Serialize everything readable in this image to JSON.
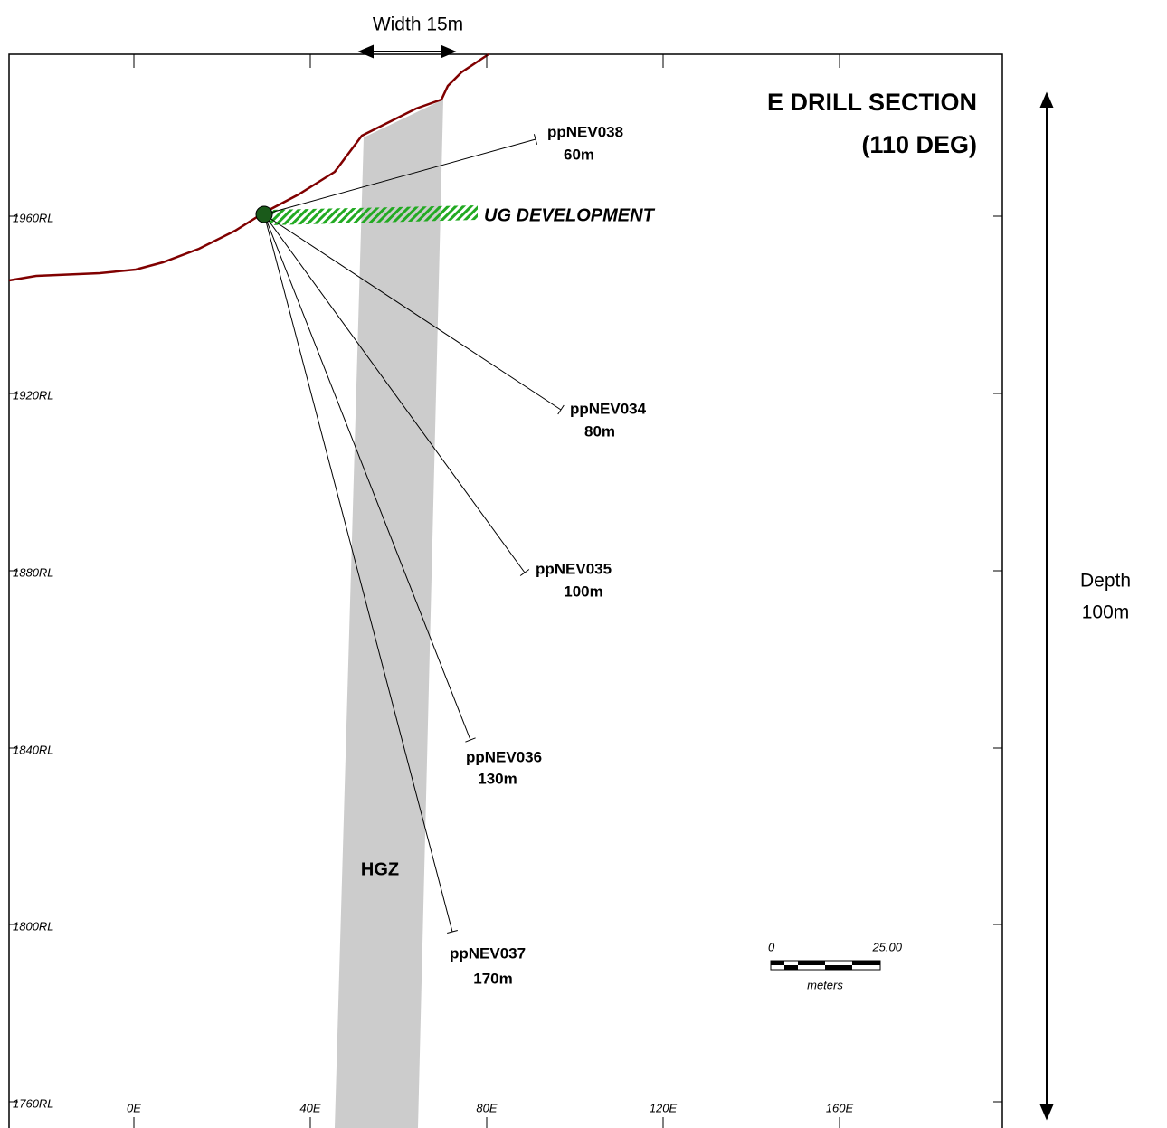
{
  "header": {
    "title": [
      "E DRILL SECTION",
      "(110 DEG)"
    ]
  },
  "annotations": {
    "width": "Width 15m",
    "depth": [
      "Depth",
      "100m"
    ],
    "development": "UG DEVELOPMENT",
    "zone": "HGZ"
  },
  "holes": [
    {
      "name": "ppNEV038",
      "length": "60m"
    },
    {
      "name": "ppNEV034",
      "length": "80m"
    },
    {
      "name": "ppNEV035",
      "length": "100m"
    },
    {
      "name": "ppNEV036",
      "length": "130m"
    },
    {
      "name": "ppNEV037",
      "length": "170m"
    }
  ],
  "rl_ticks": [
    "1960RL",
    "1920RL",
    "1880RL",
    "1840RL",
    "1800RL",
    "1760RL"
  ],
  "e_ticks": [
    "0E",
    "40E",
    "80E",
    "120E",
    "160E"
  ],
  "scale_bar": {
    "start": "0",
    "end": "25.00",
    "unit": "meters"
  }
}
